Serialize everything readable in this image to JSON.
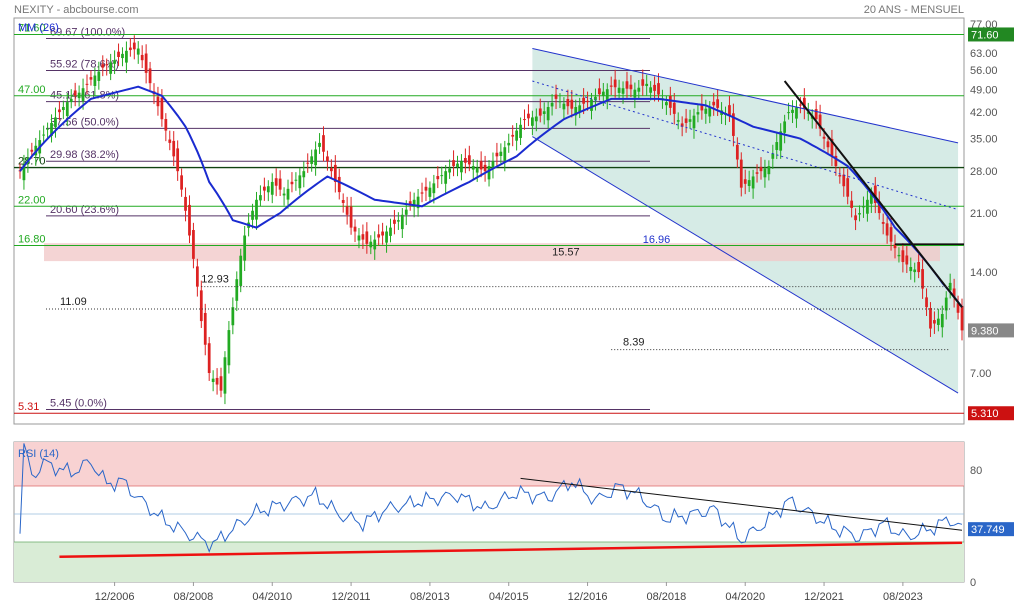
{
  "header": {
    "symbol": "NEXITY - abcbourse.com",
    "period": "20 ANS - MENSUEL",
    "ma_label": "MM (26)"
  },
  "colors": {
    "candle_up": "#22aa22",
    "candle_down": "#dd2222",
    "ma": "#1a2bd0",
    "channel": "#2233cc",
    "channel_fill": "#d6ebe6",
    "fib": "#553366",
    "support": "#22aa22",
    "rsi": "#2a66c8",
    "trend_red": "#ee1111",
    "price_badge": "#888888",
    "low_badge": "#cc1111",
    "high_badge": "#228822"
  },
  "chart_data": [
    {
      "type": "candlestick",
      "title": "NEXITY - abcbourse.com",
      "subtitle": "20 ANS - MENSUEL",
      "y_scale": "log",
      "ylim": [
        5.0,
        78.0
      ],
      "y_ticks": [
        7.0,
        14.0,
        21.0,
        28.0,
        35.0,
        42.0,
        49.0,
        56.0,
        63.0,
        77.0
      ],
      "x_ticks": [
        "12/2006",
        "08/2008",
        "04/2010",
        "12/2011",
        "08/2013",
        "04/2015",
        "12/2016",
        "08/2018",
        "04/2020",
        "12/2021",
        "08/2023"
      ],
      "x_range": [
        "2004-12",
        "2024-11"
      ],
      "last_price": "9.380",
      "low_value": "5.310",
      "high_value": "71.60",
      "price_anchors": [
        [
          "2004-12",
          28
        ],
        [
          "2005-06",
          36
        ],
        [
          "2005-12",
          45
        ],
        [
          "2006-03",
          48
        ],
        [
          "2006-09",
          57
        ],
        [
          "2006-12",
          60
        ],
        [
          "2007-03",
          64
        ],
        [
          "2007-06",
          65
        ],
        [
          "2007-08",
          55
        ],
        [
          "2007-12",
          40
        ],
        [
          "2008-04",
          28
        ],
        [
          "2008-07",
          18
        ],
        [
          "2008-10",
          10
        ],
        [
          "2008-12",
          7.0
        ],
        [
          "2009-03",
          6.2
        ],
        [
          "2009-06",
          11
        ],
        [
          "2009-09",
          18
        ],
        [
          "2009-12",
          23
        ],
        [
          "2010-04",
          26
        ],
        [
          "2010-07",
          24
        ],
        [
          "2010-12",
          28
        ],
        [
          "2011-04",
          34
        ],
        [
          "2011-08",
          26
        ],
        [
          "2011-12",
          19
        ],
        [
          "2012-04",
          17
        ],
        [
          "2012-08",
          18
        ],
        [
          "2012-12",
          20
        ],
        [
          "2013-04",
          23
        ],
        [
          "2013-08",
          25
        ],
        [
          "2013-12",
          28
        ],
        [
          "2014-04",
          30
        ],
        [
          "2014-10",
          28
        ],
        [
          "2015-04",
          34
        ],
        [
          "2015-08",
          40
        ],
        [
          "2015-12",
          41
        ],
        [
          "2016-04",
          46
        ],
        [
          "2016-08",
          43
        ],
        [
          "2016-12",
          45
        ],
        [
          "2017-06",
          50
        ],
        [
          "2017-12",
          49
        ],
        [
          "2018-03",
          51
        ],
        [
          "2018-08",
          45
        ],
        [
          "2018-12",
          38
        ],
        [
          "2019-04",
          42
        ],
        [
          "2019-08",
          44
        ],
        [
          "2019-12",
          41
        ],
        [
          "2020-03",
          25
        ],
        [
          "2020-06",
          27
        ],
        [
          "2020-10",
          29
        ],
        [
          "2021-03",
          42
        ],
        [
          "2021-06",
          44
        ],
        [
          "2021-10",
          40
        ],
        [
          "2021-12",
          35
        ],
        [
          "2022-04",
          27
        ],
        [
          "2022-08",
          20
        ],
        [
          "2022-12",
          24
        ],
        [
          "2023-04",
          18
        ],
        [
          "2023-08",
          15
        ],
        [
          "2023-12",
          14
        ],
        [
          "2024-03",
          9.5
        ],
        [
          "2024-06",
          10.5
        ],
        [
          "2024-08",
          13
        ],
        [
          "2024-11",
          9.38
        ]
      ],
      "ma_anchors": [
        [
          "2004-12",
          28
        ],
        [
          "2005-12",
          40
        ],
        [
          "2006-06",
          46
        ],
        [
          "2007-06",
          50
        ],
        [
          "2007-12",
          47
        ],
        [
          "2008-06",
          38
        ],
        [
          "2008-12",
          26
        ],
        [
          "2009-06",
          20
        ],
        [
          "2009-12",
          19
        ],
        [
          "2010-06",
          21
        ],
        [
          "2011-06",
          27
        ],
        [
          "2011-12",
          25
        ],
        [
          "2012-06",
          23
        ],
        [
          "2013-06",
          22
        ],
        [
          "2014-06",
          26
        ],
        [
          "2015-06",
          31
        ],
        [
          "2016-06",
          40
        ],
        [
          "2017-06",
          46
        ],
        [
          "2018-06",
          46
        ],
        [
          "2019-06",
          44
        ],
        [
          "2020-06",
          38
        ],
        [
          "2021-06",
          35
        ],
        [
          "2022-06",
          29
        ],
        [
          "2023-06",
          19
        ],
        [
          "2024-06",
          13
        ],
        [
          "2024-11",
          11
        ]
      ],
      "fibonacci": [
        {
          "label": "69.67  (100.0%)",
          "value": 69.67
        },
        {
          "label": "55.92  (78.6%)",
          "value": 55.92
        },
        {
          "label": "45.14  (61.8%)",
          "value": 45.14
        },
        {
          "label": "37.56  (50.0%)",
          "value": 37.56
        },
        {
          "label": "29.98  (38.2%)",
          "value": 29.98
        },
        {
          "label": "20.60  (23.6%)",
          "value": 20.6
        },
        {
          "label": "5.45  (0.0%)",
          "value": 5.45
        }
      ],
      "horizontal_levels": [
        {
          "label": "71.60",
          "value": 71.6
        },
        {
          "label": "47.00",
          "value": 47.0
        },
        {
          "label": "28.70",
          "value": 28.7
        },
        {
          "label": "22.00",
          "value": 22.0
        },
        {
          "label": "16.80",
          "value": 16.8
        },
        {
          "label": "5.31",
          "value": 5.31
        }
      ],
      "annotations": [
        {
          "label": "12.93",
          "date": "2008-10",
          "value": 12.93
        },
        {
          "label": "11.09",
          "date": "2005-12",
          "value": 11.09
        },
        {
          "label": "15.57",
          "date": "2016-03",
          "value": 15.57
        },
        {
          "label": "16.96",
          "date": "2018-02",
          "value": 16.96
        },
        {
          "label": "8.39",
          "date": "2017-09",
          "value": 8.39
        }
      ],
      "channel": {
        "upper": [
          [
            "2015-10",
            65
          ],
          [
            "2024-10",
            34
          ]
        ],
        "lower": [
          [
            "2015-10",
            35.5
          ],
          [
            "2024-10",
            6.1
          ]
        ],
        "middle": [
          [
            "2015-10",
            52
          ],
          [
            "2024-10",
            21.5
          ]
        ]
      },
      "trendline": [
        [
          "2021-02",
          52
        ],
        [
          "2024-11",
          11
        ]
      ]
    },
    {
      "type": "line",
      "title": "RSI (14)",
      "ylim": [
        0,
        100
      ],
      "y_ticks": [
        0,
        80
      ],
      "last_value": "37.749",
      "overbought": 70,
      "oversold": 30,
      "rsi_anchors": [
        [
          "2004-12",
          40
        ],
        [
          "2005-01",
          99
        ],
        [
          "2005-03",
          75
        ],
        [
          "2005-06",
          85
        ],
        [
          "2005-09",
          82
        ],
        [
          "2006-01",
          78
        ],
        [
          "2006-06",
          86
        ],
        [
          "2006-10",
          70
        ],
        [
          "2007-02",
          72
        ],
        [
          "2007-06",
          60
        ],
        [
          "2007-12",
          45
        ],
        [
          "2008-06",
          35
        ],
        [
          "2008-10",
          30
        ],
        [
          "2009-01",
          27
        ],
        [
          "2009-06",
          38
        ],
        [
          "2009-12",
          50
        ],
        [
          "2010-06",
          55
        ],
        [
          "2011-03",
          62
        ],
        [
          "2011-09",
          48
        ],
        [
          "2012-03",
          42
        ],
        [
          "2012-09",
          52
        ],
        [
          "2013-06",
          58
        ],
        [
          "2014-03",
          62
        ],
        [
          "2014-10",
          52
        ],
        [
          "2015-06",
          64
        ],
        [
          "2016-02",
          60
        ],
        [
          "2016-08",
          72
        ],
        [
          "2017-02",
          58
        ],
        [
          "2017-08",
          68
        ],
        [
          "2018-01",
          62
        ],
        [
          "2018-08",
          45
        ],
        [
          "2019-02",
          48
        ],
        [
          "2019-08",
          52
        ],
        [
          "2020-03",
          30
        ],
        [
          "2020-09",
          42
        ],
        [
          "2021-03",
          58
        ],
        [
          "2021-09",
          48
        ],
        [
          "2022-03",
          38
        ],
        [
          "2022-09",
          32
        ],
        [
          "2023-03",
          42
        ],
        [
          "2023-09",
          32
        ],
        [
          "2024-03",
          38
        ],
        [
          "2024-08",
          45
        ],
        [
          "2024-11",
          37.7
        ]
      ],
      "trendline_upper": [
        [
          "2015-07",
          74
        ],
        [
          "2024-11",
          37
        ]
      ],
      "trendline_lower": [
        [
          "2005-10",
          18
        ],
        [
          "2024-11",
          28
        ]
      ]
    }
  ]
}
